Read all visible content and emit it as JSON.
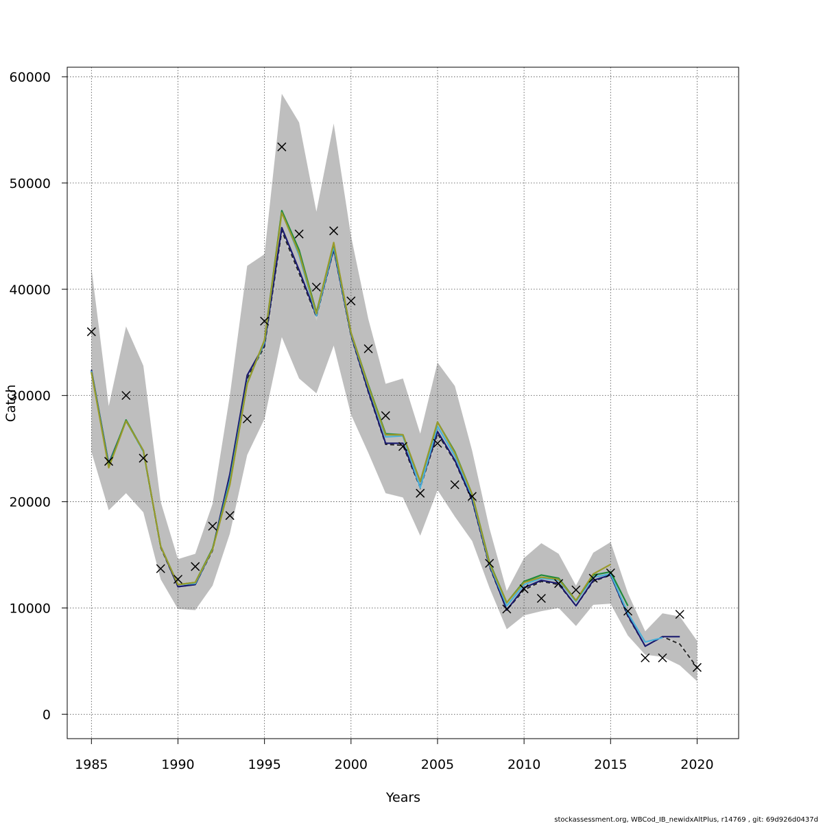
{
  "chart_data": {
    "type": "line",
    "xlabel": "Years",
    "ylabel": "Catch",
    "xlim": [
      1983.6,
      2022.4
    ],
    "ylim": [
      -2300,
      60900
    ],
    "x_ticks": [
      1985,
      1990,
      1995,
      2000,
      2005,
      2010,
      2015,
      2020
    ],
    "y_ticks": [
      0,
      10000,
      20000,
      30000,
      40000,
      50000,
      60000
    ],
    "grid": true,
    "legend": "none",
    "confidence_band": {
      "color": "#bebebe",
      "x": [
        1985,
        1986,
        1987,
        1988,
        1989,
        1990,
        1991,
        1992,
        1993,
        1994,
        1995,
        1996,
        1997,
        1998,
        1999,
        2000,
        2001,
        2002,
        2003,
        2004,
        2005,
        2006,
        2007,
        2008,
        2009,
        2010,
        2011,
        2012,
        2013,
        2014,
        2015,
        2016,
        2017,
        2018,
        2019,
        2020
      ],
      "upper": [
        42000,
        29000,
        36500,
        32800,
        20000,
        14600,
        15100,
        19800,
        30000,
        42200,
        43300,
        58400,
        55700,
        47300,
        55600,
        45000,
        37200,
        31100,
        31600,
        26400,
        33100,
        30900,
        24800,
        17500,
        11600,
        14700,
        16100,
        15100,
        12100,
        15200,
        16200,
        11400,
        7800,
        9500,
        9200,
        6900
      ],
      "lower": [
        24700,
        19200,
        20800,
        19000,
        12700,
        9900,
        9800,
        12100,
        17000,
        24400,
        27800,
        35500,
        31600,
        30200,
        34700,
        28200,
        24600,
        20800,
        20400,
        16800,
        21100,
        18600,
        16300,
        11900,
        8000,
        9300,
        9700,
        10000,
        8300,
        10300,
        10400,
        7400,
        5600,
        5400,
        4600,
        3100
      ]
    },
    "observed_catch": {
      "marker": "x",
      "color": "#000000",
      "x": [
        1985,
        1986,
        1987,
        1988,
        1989,
        1990,
        1991,
        1992,
        1993,
        1994,
        1995,
        1996,
        1997,
        1998,
        1999,
        2000,
        2001,
        2002,
        2003,
        2004,
        2005,
        2006,
        2007,
        2008,
        2009,
        2010,
        2011,
        2012,
        2013,
        2014,
        2015,
        2016,
        2017,
        2018,
        2019,
        2020
      ],
      "y": [
        36000,
        23800,
        30000,
        24100,
        13700,
        12700,
        13900,
        17700,
        18700,
        27800,
        37000,
        53400,
        45200,
        40200,
        45500,
        38900,
        34400,
        28100,
        25200,
        20800,
        25500,
        21600,
        20500,
        14200,
        9900,
        11800,
        10900,
        12300,
        11700,
        12800,
        13300,
        9700,
        5300,
        5300,
        9400,
        4400
      ]
    },
    "series": [
      {
        "color": "#2a2a2a",
        "dashed": true,
        "x": [
          1985,
          1986,
          1987,
          1988,
          1989,
          1990,
          1991,
          1992,
          1993,
          1994,
          1995,
          1996,
          1997,
          1998,
          1999,
          2000,
          2001,
          2002,
          2003,
          2004,
          2005,
          2006,
          2007,
          2008,
          2009,
          2010,
          2011,
          2012,
          2013,
          2014,
          2015,
          2016,
          2017,
          2018,
          2019,
          2020
        ],
        "y": [
          32300,
          23500,
          27600,
          24700,
          15700,
          12000,
          12200,
          15400,
          22300,
          31600,
          34600,
          45500,
          41500,
          37400,
          43700,
          35600,
          30300,
          25400,
          25300,
          21300,
          26400,
          23800,
          20100,
          13900,
          9800,
          11700,
          12500,
          12200,
          10200,
          12500,
          13100,
          9200,
          6400,
          7300,
          6600,
          4400
        ]
      },
      {
        "color": "#1a1a6e",
        "dashed": false,
        "x": [
          1985,
          1986,
          1987,
          1988,
          1989,
          1990,
          1991,
          1992,
          1993,
          1994,
          1995,
          1996,
          1997,
          1998,
          1999,
          2000,
          2001,
          2002,
          2003,
          2004,
          2005,
          2006,
          2007,
          2008,
          2009,
          2010,
          2011,
          2012,
          2013,
          2014,
          2015,
          2016,
          2017,
          2018,
          2019
        ],
        "y": [
          32400,
          23600,
          27600,
          24800,
          15800,
          12000,
          12200,
          15500,
          22600,
          31900,
          34800,
          45800,
          41800,
          37500,
          43800,
          35700,
          30400,
          25500,
          25500,
          21400,
          26600,
          23900,
          20200,
          14000,
          9800,
          11900,
          12600,
          12300,
          10200,
          12600,
          13100,
          9300,
          6400,
          7300,
          7300
        ]
      },
      {
        "color": "#4ab0d8",
        "dashed": false,
        "x": [
          1985,
          1986,
          1987,
          1988,
          1989,
          1990,
          1991,
          1992,
          1993,
          1994,
          1995,
          1996,
          1997,
          1998,
          1999,
          2000,
          2001,
          2002,
          2003,
          2004,
          2005,
          2006,
          2007,
          2008,
          2009,
          2010,
          2011,
          2012,
          2013,
          2014,
          2015,
          2016,
          2017,
          2018
        ],
        "y": [
          32300,
          23500,
          27600,
          24700,
          15800,
          12200,
          12300,
          15500,
          22000,
          31200,
          35000,
          47300,
          43200,
          37500,
          44000,
          35800,
          30800,
          26100,
          26200,
          21300,
          27100,
          24300,
          20500,
          14100,
          10200,
          12200,
          12800,
          12600,
          10600,
          12900,
          13200,
          9500,
          6800,
          7200
        ]
      },
      {
        "color": "#1f8a3a",
        "dashed": false,
        "x": [
          1985,
          1986,
          1987,
          1988,
          1989,
          1990,
          1991,
          1992,
          1993,
          1994,
          1995,
          1996,
          1997,
          1998,
          1999,
          2000,
          2001,
          2002,
          2003,
          2004,
          2005,
          2006,
          2007,
          2008,
          2009,
          2010,
          2011,
          2012,
          2013,
          2014,
          2015,
          2016
        ],
        "y": [
          32200,
          23400,
          27700,
          24800,
          15800,
          12200,
          12400,
          15600,
          21700,
          31100,
          35200,
          47400,
          43700,
          37800,
          44300,
          35900,
          31000,
          26400,
          26300,
          21900,
          27500,
          24700,
          20700,
          14300,
          10500,
          12500,
          13100,
          12800,
          10700,
          13100,
          13400,
          10200
        ]
      },
      {
        "color": "#9a9a2a",
        "dashed": false,
        "x": [
          1985,
          1986,
          1987,
          1988,
          1989,
          1990,
          1991,
          1992,
          1993,
          1994,
          1995,
          1996,
          1997,
          1998,
          1999,
          2000,
          2001,
          2002,
          2003,
          2004,
          2005,
          2006,
          2007,
          2008,
          2009,
          2010,
          2011,
          2012,
          2013,
          2014,
          2015
        ],
        "y": [
          32200,
          23200,
          27600,
          24800,
          15800,
          12200,
          12400,
          15500,
          21600,
          31100,
          35200,
          47200,
          43400,
          37700,
          44400,
          35900,
          30900,
          26300,
          26300,
          21900,
          27500,
          24600,
          20700,
          14200,
          10500,
          12400,
          12900,
          12700,
          10700,
          13200,
          14100
        ]
      }
    ]
  },
  "footer": "stockassessment.org, WBCod_IB_newidxAltPlus, r14769 , git: 69d926d0437d"
}
